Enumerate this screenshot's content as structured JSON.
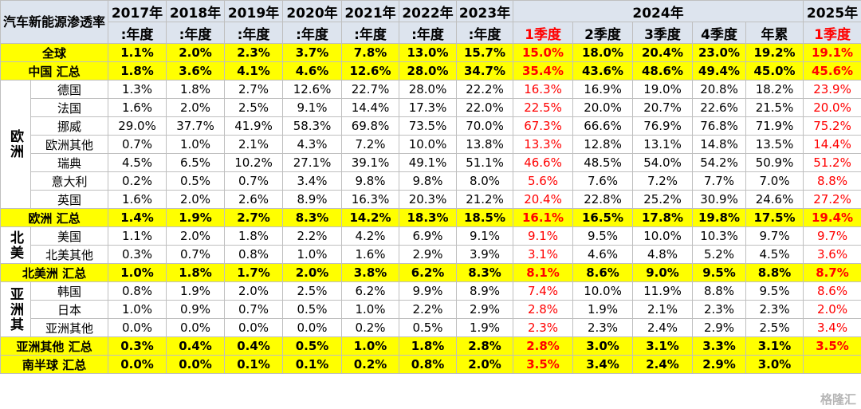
{
  "header": {
    "title": "汽车新能源渗透率",
    "row1": [
      "2017年",
      "2018年",
      "2019年",
      "2020年",
      "2021年",
      "2022年",
      "2023年",
      "2024年",
      "2025年"
    ],
    "row2": [
      ":年度",
      ":年度",
      ":年度",
      ":年度",
      ":年度",
      ":年度",
      ":年度",
      {
        "text": "1季度",
        "color": "#ff0000"
      },
      "2季度",
      "3季度",
      "4季度",
      "年累",
      {
        "text": "1季度",
        "color": "#ff0000"
      }
    ]
  },
  "body": [
    {
      "label": "全球",
      "total": true,
      "values": [
        "1.1%",
        "2.0%",
        "2.3%",
        "3.7%",
        "7.8%",
        "13.0%",
        "15.7%",
        "15.0%",
        "18.0%",
        "20.4%",
        "23.0%",
        "19.2%",
        "19.1%"
      ]
    },
    {
      "label": "中国 汇总",
      "total": true,
      "values": [
        "1.8%",
        "3.6%",
        "4.1%",
        "4.6%",
        "12.6%",
        "28.0%",
        "34.7%",
        "35.4%",
        "43.6%",
        "48.6%",
        "49.4%",
        "45.0%",
        "45.6%"
      ]
    },
    {
      "group": "欧洲",
      "rows": [
        {
          "label": "德国",
          "values": [
            "1.3%",
            "1.8%",
            "2.7%",
            "12.6%",
            "22.7%",
            "28.0%",
            "22.2%",
            "16.3%",
            "16.9%",
            "19.0%",
            "20.8%",
            "18.2%",
            "23.9%"
          ]
        },
        {
          "label": "法国",
          "values": [
            "1.6%",
            "2.0%",
            "2.5%",
            "9.1%",
            "14.4%",
            "17.3%",
            "22.0%",
            "22.5%",
            "20.0%",
            "20.7%",
            "22.6%",
            "21.5%",
            "20.0%"
          ]
        },
        {
          "label": "挪威",
          "values": [
            "29.0%",
            "37.7%",
            "41.9%",
            "58.3%",
            "69.8%",
            "73.5%",
            "70.0%",
            "67.3%",
            "66.6%",
            "76.9%",
            "76.8%",
            "71.9%",
            "75.2%"
          ]
        },
        {
          "label": "欧洲其他",
          "values": [
            "0.7%",
            "1.0%",
            "2.1%",
            "4.3%",
            "7.2%",
            "10.0%",
            "13.8%",
            "13.3%",
            "12.8%",
            "13.1%",
            "14.8%",
            "13.5%",
            "14.4%"
          ]
        },
        {
          "label": "瑞典",
          "values": [
            "4.5%",
            "6.5%",
            "10.2%",
            "27.1%",
            "39.1%",
            "49.1%",
            "51.1%",
            "46.6%",
            "48.5%",
            "54.0%",
            "54.2%",
            "50.9%",
            "51.2%"
          ]
        },
        {
          "label": "意大利",
          "values": [
            "0.2%",
            "0.5%",
            "0.7%",
            "3.4%",
            "9.8%",
            "9.8%",
            "8.0%",
            "5.6%",
            "7.6%",
            "7.2%",
            "7.7%",
            "7.0%",
            "8.8%"
          ]
        },
        {
          "label": "英国",
          "values": [
            "1.6%",
            "2.0%",
            "2.6%",
            "8.9%",
            "16.3%",
            "20.3%",
            "21.2%",
            "20.4%",
            "22.8%",
            "25.2%",
            "30.9%",
            "24.6%",
            "27.2%"
          ]
        }
      ]
    },
    {
      "label": "欧洲 汇总",
      "total": true,
      "values": [
        "1.4%",
        "1.9%",
        "2.7%",
        "8.3%",
        "14.2%",
        "18.3%",
        "18.5%",
        "16.1%",
        "16.5%",
        "17.8%",
        "19.8%",
        "17.5%",
        "19.4%"
      ]
    },
    {
      "group": "北美",
      "rows": [
        {
          "label": "美国",
          "values": [
            "1.1%",
            "2.0%",
            "1.8%",
            "2.2%",
            "4.2%",
            "6.9%",
            "9.1%",
            "9.1%",
            "9.5%",
            "10.0%",
            "10.3%",
            "9.7%",
            "9.7%"
          ]
        },
        {
          "label": "北美其他",
          "values": [
            "0.3%",
            "0.7%",
            "0.8%",
            "1.0%",
            "1.6%",
            "2.9%",
            "3.9%",
            "3.1%",
            "4.6%",
            "4.8%",
            "5.2%",
            "4.5%",
            "3.6%"
          ]
        }
      ]
    },
    {
      "label": "北美洲 汇总",
      "total": true,
      "values": [
        "1.0%",
        "1.8%",
        "1.7%",
        "2.0%",
        "3.8%",
        "6.2%",
        "8.3%",
        "8.1%",
        "8.6%",
        "9.0%",
        "9.5%",
        "8.8%",
        "8.7%"
      ]
    },
    {
      "group": "亚洲其",
      "rows": [
        {
          "label": "韩国",
          "values": [
            "0.8%",
            "1.9%",
            "2.0%",
            "2.5%",
            "6.2%",
            "9.9%",
            "8.9%",
            "7.4%",
            "10.0%",
            "11.9%",
            "8.8%",
            "9.5%",
            "8.6%"
          ]
        },
        {
          "label": "日本",
          "values": [
            "1.0%",
            "0.9%",
            "0.7%",
            "0.5%",
            "1.0%",
            "2.2%",
            "2.9%",
            "2.8%",
            "1.9%",
            "2.1%",
            "2.3%",
            "2.3%",
            "2.0%"
          ]
        },
        {
          "label": "亚洲其他",
          "values": [
            "0.0%",
            "0.0%",
            "0.0%",
            "0.0%",
            "0.2%",
            "0.5%",
            "1.9%",
            "2.3%",
            "2.3%",
            "2.4%",
            "2.9%",
            "2.5%",
            "3.4%"
          ]
        }
      ]
    },
    {
      "label": "亚洲其他 汇总",
      "total": true,
      "values": [
        "0.3%",
        "0.4%",
        "0.4%",
        "0.5%",
        "1.0%",
        "1.8%",
        "2.8%",
        "2.8%",
        "3.0%",
        "3.1%",
        "3.3%",
        "3.1%",
        "3.5%"
      ]
    },
    {
      "label": "南半球 汇总",
      "total": true,
      "values": [
        "0.0%",
        "0.0%",
        "0.1%",
        "0.1%",
        "0.2%",
        "0.8%",
        "2.0%",
        "3.5%",
        "3.4%",
        "2.4%",
        "2.9%",
        "3.0%",
        null
      ]
    }
  ],
  "watermark": "格隆汇"
}
